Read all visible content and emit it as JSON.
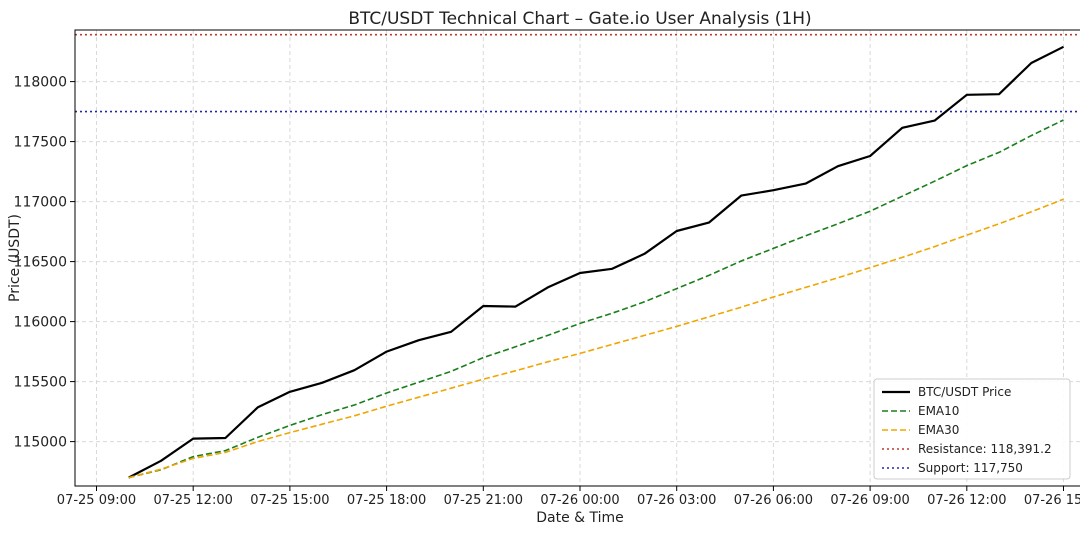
{
  "chart_data": {
    "type": "line",
    "title": "BTC/USDT Technical Chart – Gate.io User Analysis (1H)",
    "xlabel": "Date & Time",
    "ylabel": "Price (USDT)",
    "xlim": [
      "2025-07-25 08:20",
      "2025-07-26 15:40"
    ],
    "ylim": [
      114630,
      118430
    ],
    "xticks": [
      {
        "t": "2025-07-25 09:00",
        "label": "07-25 09:00"
      },
      {
        "t": "2025-07-25 12:00",
        "label": "07-25 12:00"
      },
      {
        "t": "2025-07-25 15:00",
        "label": "07-25 15:00"
      },
      {
        "t": "2025-07-25 18:00",
        "label": "07-25 18:00"
      },
      {
        "t": "2025-07-25 21:00",
        "label": "07-25 21:00"
      },
      {
        "t": "2025-07-26 00:00",
        "label": "07-26 00:00"
      },
      {
        "t": "2025-07-26 03:00",
        "label": "07-26 03:00"
      },
      {
        "t": "2025-07-26 06:00",
        "label": "07-26 06:00"
      },
      {
        "t": "2025-07-26 09:00",
        "label": "07-26 09:00"
      },
      {
        "t": "2025-07-26 12:00",
        "label": "07-26 12:00"
      },
      {
        "t": "2025-07-26 15:00",
        "label": "07-26 15:00"
      }
    ],
    "yticks": [
      115000,
      115500,
      116000,
      116500,
      117000,
      117500,
      118000
    ],
    "grid": true,
    "legend_position": "bottom-right",
    "x": [
      "2025-07-25 10:00",
      "2025-07-25 11:00",
      "2025-07-25 12:00",
      "2025-07-25 13:00",
      "2025-07-25 14:00",
      "2025-07-25 15:00",
      "2025-07-25 16:00",
      "2025-07-25 17:00",
      "2025-07-25 18:00",
      "2025-07-25 19:00",
      "2025-07-25 20:00",
      "2025-07-25 21:00",
      "2025-07-25 22:00",
      "2025-07-25 23:00",
      "2025-07-26 00:00",
      "2025-07-26 01:00",
      "2025-07-26 02:00",
      "2025-07-26 03:00",
      "2025-07-26 04:00",
      "2025-07-26 05:00",
      "2025-07-26 06:00",
      "2025-07-26 07:00",
      "2025-07-26 08:00",
      "2025-07-26 09:00",
      "2025-07-26 10:00",
      "2025-07-26 11:00",
      "2025-07-26 12:00",
      "2025-07-26 13:00",
      "2025-07-26 14:00",
      "2025-07-26 15:00"
    ],
    "series": [
      {
        "name": "BTC/USDT Price",
        "color": "#000000",
        "dash": "solid",
        "values": [
          114700,
          114840,
          115025,
          115030,
          115285,
          115415,
          115490,
          115595,
          115750,
          115845,
          115915,
          116130,
          116125,
          116285,
          116405,
          116440,
          116565,
          116755,
          116825,
          117050,
          117095,
          117150,
          117295,
          117380,
          117615,
          117675,
          117890,
          117895,
          118155,
          118290
        ]
      },
      {
        "name": "EMA10",
        "color": "#1a7f1a",
        "dash": "dashed",
        "values": [
          114700,
          114765,
          114875,
          114925,
          115035,
          115135,
          115225,
          115305,
          115405,
          115495,
          115585,
          115700,
          115790,
          115885,
          115985,
          116070,
          116165,
          116275,
          116385,
          116505,
          116610,
          116715,
          116815,
          116920,
          117045,
          117170,
          117300,
          117410,
          117550,
          117680
        ]
      },
      {
        "name": "EMA30",
        "color": "#f0a500",
        "dash": "dashed",
        "values": [
          114700,
          114770,
          114860,
          114910,
          115000,
          115075,
          115145,
          115215,
          115295,
          115370,
          115445,
          115520,
          115590,
          115665,
          115735,
          115810,
          115885,
          115960,
          116040,
          116120,
          116205,
          116285,
          116365,
          116450,
          116535,
          116625,
          116720,
          116815,
          116915,
          117020
        ]
      }
    ],
    "hlines": [
      {
        "name": "Resistance: 118,391.2",
        "y": 118391.2,
        "color": "#c0392b",
        "dash": "dotted"
      },
      {
        "name": "Support: 117,750",
        "y": 117750,
        "color": "#1f2aa8",
        "dash": "dotted"
      }
    ]
  }
}
